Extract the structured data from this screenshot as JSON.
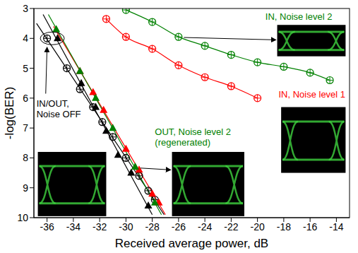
{
  "chart_data": {
    "type": "scatter",
    "x_label": "Received average power, dB",
    "y_label": "-log(BER)",
    "xlim": [
      -37,
      -13
    ],
    "xticks": [
      -36,
      -34,
      -32,
      -30,
      -28,
      -26,
      -24,
      -22,
      -20,
      -18,
      -16,
      -14
    ],
    "ylim": [
      10,
      3
    ],
    "yticks": [
      3,
      4,
      5,
      6,
      7,
      8,
      9,
      10
    ],
    "grid": false,
    "series": [
      {
        "type": "scatter",
        "marker": "triangle",
        "line_style": "none",
        "color": "#000000",
        "x": [
          -35.2,
          -33.4,
          -32.3,
          -31.5,
          -30.6,
          -29.6,
          -28.3
        ],
        "values": [
          4.0,
          5.5,
          6.3,
          7.1,
          7.9,
          8.5,
          9.6
        ]
      },
      {
        "type": "line",
        "marker": "none",
        "line_style": "solid",
        "color": "#000000",
        "x": [
          -36.3,
          -28.0
        ],
        "values": [
          3.2,
          9.9
        ]
      },
      {
        "name": "IN/OUT, Noise OFF",
        "type": "scatter",
        "marker": "crossed_circle",
        "line_style": "none",
        "color": "#000000",
        "x": [
          -36.0,
          -34.5,
          -33.5,
          -32.5,
          -31.8,
          -31.0,
          -30.0,
          -29.0,
          -28.3,
          -27.8
        ],
        "values": [
          4.0,
          5.0,
          5.7,
          6.3,
          6.8,
          7.3,
          8.0,
          8.6,
          9.1,
          9.4
        ]
      },
      {
        "type": "line",
        "marker": "none",
        "line_style": "solid",
        "color": "#000000",
        "x": [
          -36.8,
          -27.1
        ],
        "values": [
          3.5,
          9.9
        ]
      },
      {
        "type": "scatter",
        "marker": "triangle",
        "line_style": "none",
        "color": "#ff0000",
        "x": [
          -33.5,
          -32.5,
          -31.7,
          -30.0,
          -29.0,
          -28.0,
          -27.5
        ],
        "values": [
          5.1,
          5.8,
          6.4,
          7.7,
          8.4,
          9.2,
          9.5
        ]
      },
      {
        "type": "line",
        "marker": "none",
        "line_style": "solid",
        "color": "#ff0000",
        "x": [
          -35.5,
          -27.0
        ],
        "values": [
          3.6,
          9.9
        ]
      },
      {
        "name": "OUT, Noise level 2 (regenerated)",
        "type": "scatter",
        "marker": "triangle",
        "line_style": "none",
        "color": "#008000",
        "x": [
          -35.3,
          -33.5,
          -32.3,
          -31.0,
          -29.3,
          -27.8
        ],
        "values": [
          3.7,
          5.1,
          6.0,
          7.0,
          8.3,
          9.5
        ]
      },
      {
        "type": "line",
        "marker": "none",
        "line_style": "solid",
        "color": "#008000",
        "x": [
          -35.9,
          -27.3
        ],
        "values": [
          3.2,
          9.9
        ]
      },
      {
        "name": "IN, Noise level 1",
        "type": "scatter",
        "marker": "crossed_circle",
        "line_style": "solid",
        "color": "#ff0000",
        "x": [
          -31.5,
          -30.0,
          -28.0,
          -26.0,
          -24.0,
          -22.0,
          -20.0
        ],
        "values": [
          3.35,
          3.95,
          4.35,
          4.9,
          5.3,
          5.6,
          6.0
        ]
      },
      {
        "name": "IN, Noise level 2",
        "type": "scatter",
        "marker": "crossed_circle",
        "line_style": "solid",
        "color": "#008000",
        "x": [
          -30.0,
          -28.0,
          -26.0,
          -24.0,
          -22.0,
          -20.0,
          -18.0,
          -16.0,
          -14.5
        ],
        "values": [
          3.05,
          3.45,
          3.95,
          4.25,
          4.55,
          4.8,
          4.95,
          5.15,
          5.4
        ]
      }
    ]
  }
}
